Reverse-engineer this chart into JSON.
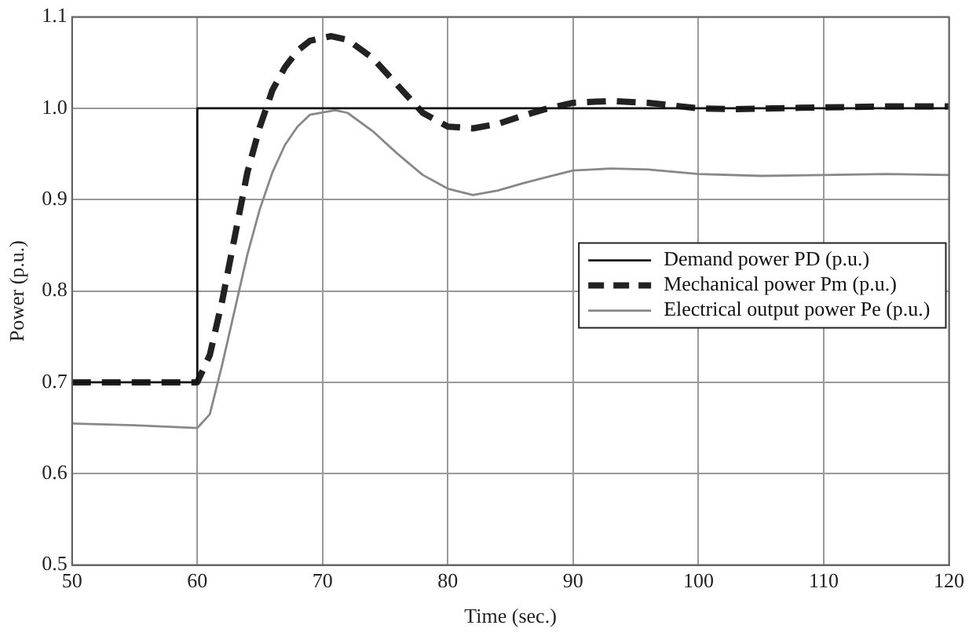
{
  "chart_data": {
    "type": "line",
    "xlabel": "Time (sec.)",
    "ylabel": "Power (p.u.)",
    "xlim": [
      50,
      120
    ],
    "xticks": [
      50,
      60,
      70,
      80,
      90,
      100,
      110,
      120
    ],
    "ylim": [
      0.5,
      1.1
    ],
    "yticks": [
      {
        "value": 0.5,
        "label": "0.5"
      },
      {
        "value": 0.6,
        "label": "0.6"
      },
      {
        "value": 0.7,
        "label": "0.7"
      },
      {
        "value": 0.8,
        "label": "0.8"
      },
      {
        "value": 0.9,
        "label": "0.9"
      },
      {
        "value": 1.0,
        "label": "1.0"
      },
      {
        "value": 1.1,
        "label": "1.1"
      }
    ],
    "grid": true,
    "legend": "right",
    "marker": "none",
    "series": [
      {
        "name": "Demand power PD (p.u.)",
        "color": "#111111",
        "line_style": "solid",
        "x": [
          50,
          60,
          60,
          120
        ],
        "values": [
          0.7,
          0.7,
          1.0,
          1.0
        ]
      },
      {
        "name": "Mechanical power Pm (p.u.)",
        "color": "#222222",
        "line_style": "dashed",
        "x": [
          50,
          60,
          61,
          62,
          63,
          64,
          65,
          66,
          67,
          68,
          69,
          70.7,
          72,
          74,
          76,
          78,
          80,
          82,
          84,
          86,
          88,
          90,
          93,
          96,
          100,
          103,
          106,
          110,
          115,
          120
        ],
        "values": [
          0.7,
          0.7,
          0.73,
          0.79,
          0.86,
          0.93,
          0.98,
          1.02,
          1.045,
          1.063,
          1.074,
          1.079,
          1.075,
          1.055,
          1.025,
          0.995,
          0.98,
          0.978,
          0.983,
          0.992,
          1.0,
          1.006,
          1.008,
          1.006,
          1.0,
          0.999,
          1.0,
          1.001,
          1.002,
          1.002
        ]
      },
      {
        "name": "Electrical output power Pe (p.u.)",
        "color": "#888888",
        "line_style": "solid",
        "x": [
          50,
          55,
          60,
          61,
          62,
          63,
          64,
          65,
          66,
          67,
          68,
          69,
          71,
          72,
          74,
          76,
          78,
          80,
          82,
          84,
          86,
          88,
          90,
          93,
          96,
          100,
          105,
          110,
          115,
          120
        ],
        "values": [
          0.655,
          0.653,
          0.65,
          0.665,
          0.72,
          0.78,
          0.84,
          0.89,
          0.93,
          0.96,
          0.98,
          0.993,
          0.998,
          0.995,
          0.975,
          0.95,
          0.927,
          0.912,
          0.905,
          0.91,
          0.918,
          0.925,
          0.932,
          0.934,
          0.933,
          0.928,
          0.926,
          0.927,
          0.928,
          0.927
        ]
      }
    ]
  }
}
